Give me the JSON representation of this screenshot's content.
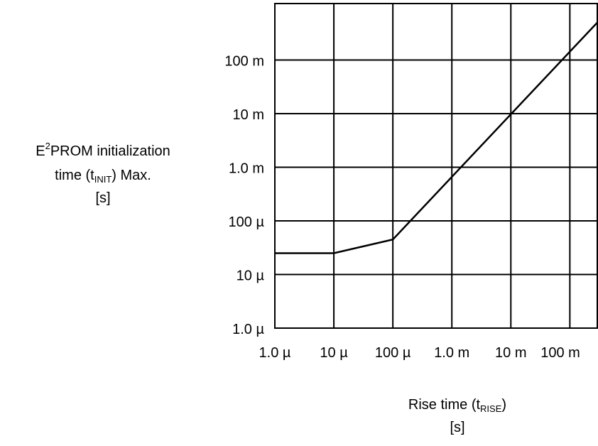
{
  "chart_data": {
    "type": "line",
    "x_scale": "log",
    "y_scale": "log",
    "xlim": [
      1e-06,
      0.3
    ],
    "ylim": [
      1e-06,
      0.1
    ],
    "grid": true,
    "ylabel": {
      "line1_main": "E",
      "line1_sup": "2",
      "line1_rest": "PROM initialization",
      "line2_pre": "time (t",
      "line2_sub": "INIT",
      "line2_post": ") Max.",
      "line3": "[s]"
    },
    "xlabel": {
      "line1_pre": "Rise time (t",
      "line1_sub": "RISE",
      "line1_post": ")",
      "line2": "[s]"
    },
    "x_ticks": [
      {
        "value": 1e-06,
        "label": "1.0 µ"
      },
      {
        "value": 1e-05,
        "label": "10 µ"
      },
      {
        "value": 0.0001,
        "label": "100 µ"
      },
      {
        "value": 0.001,
        "label": "1.0 m"
      },
      {
        "value": 0.01,
        "label": "10 m"
      },
      {
        "value": 0.1,
        "label": "100 m"
      }
    ],
    "y_ticks": [
      {
        "value": 1e-06,
        "label": "1.0  µ"
      },
      {
        "value": 1e-05,
        "label": "10  µ"
      },
      {
        "value": 0.0001,
        "label": "100  µ"
      },
      {
        "value": 0.001,
        "label": "1.0 m"
      },
      {
        "value": 0.01,
        "label": "10 m"
      },
      {
        "value": 0.1,
        "label": "100 m"
      }
    ],
    "series": [
      {
        "x": [
          1e-06,
          1e-05,
          0.0001,
          0.3
        ],
        "y": [
          2.5e-05,
          2.5e-05,
          4.5e-05,
          0.5
        ]
      }
    ]
  }
}
